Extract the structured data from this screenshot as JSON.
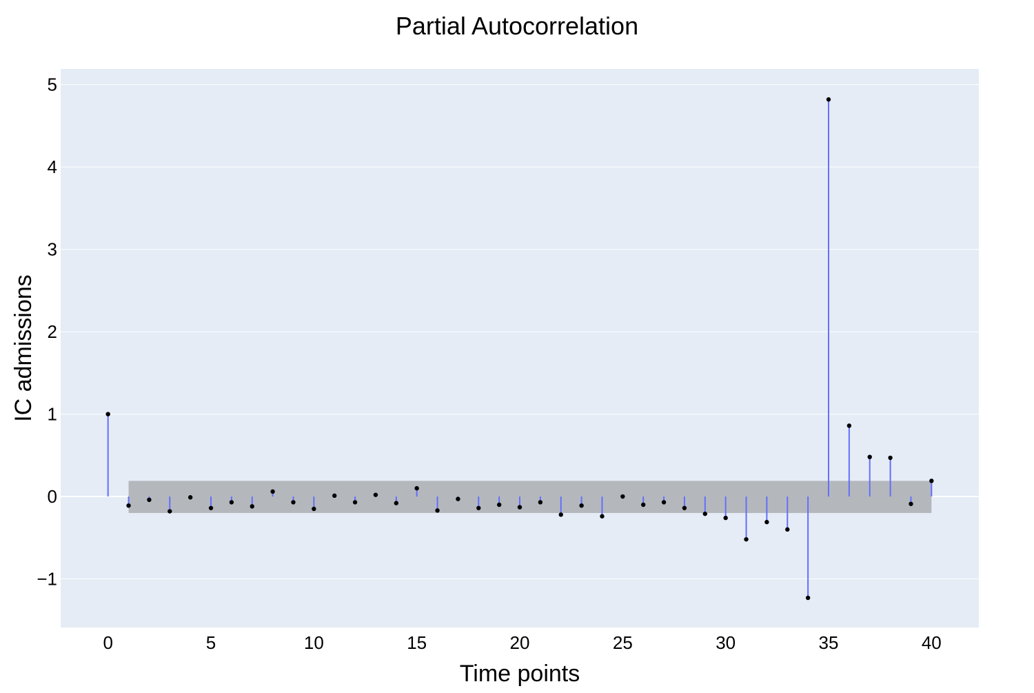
{
  "chart_data": {
    "type": "scatter",
    "subtype": "stem",
    "title": "Partial Autocorrelation",
    "xlabel": "Time points",
    "ylabel": "IC admissions",
    "xlim": [
      -2.3,
      42.3
    ],
    "ylim": [
      -1.59,
      5.19
    ],
    "xticks": [
      0,
      5,
      10,
      15,
      20,
      25,
      30,
      35,
      40
    ],
    "xtick_labels": [
      "0",
      "5",
      "10",
      "15",
      "20",
      "25",
      "30",
      "35",
      "40"
    ],
    "yticks": [
      -1,
      0,
      1,
      2,
      3,
      4,
      5
    ],
    "ytick_labels": [
      "−1",
      "0",
      "1",
      "2",
      "3",
      "4",
      "5"
    ],
    "grid": true,
    "confidence_band": {
      "x_start": 1,
      "x_end": 40,
      "lower": -0.2,
      "upper": 0.19
    },
    "x": [
      0,
      1,
      2,
      3,
      4,
      5,
      6,
      7,
      8,
      9,
      10,
      11,
      12,
      13,
      14,
      15,
      16,
      17,
      18,
      19,
      20,
      21,
      22,
      23,
      24,
      25,
      26,
      27,
      28,
      29,
      30,
      31,
      32,
      33,
      34,
      35,
      36,
      37,
      38,
      39,
      40
    ],
    "values": [
      1.0,
      -0.11,
      -0.04,
      -0.18,
      -0.01,
      -0.14,
      -0.07,
      -0.12,
      0.06,
      -0.07,
      -0.15,
      0.01,
      -0.07,
      0.02,
      -0.08,
      0.1,
      -0.17,
      -0.03,
      -0.14,
      -0.1,
      -0.13,
      -0.07,
      -0.22,
      -0.11,
      -0.24,
      0.0,
      -0.1,
      -0.07,
      -0.14,
      -0.21,
      -0.26,
      -0.52,
      -0.31,
      -0.4,
      -1.23,
      4.82,
      0.86,
      0.48,
      0.47,
      -0.09,
      0.19
    ],
    "colors": {
      "plot_background": "#e5ecf6",
      "grid": "#ffffff",
      "band": "#b4b8bd",
      "stem": "#636efa",
      "marker": "#000000"
    }
  }
}
